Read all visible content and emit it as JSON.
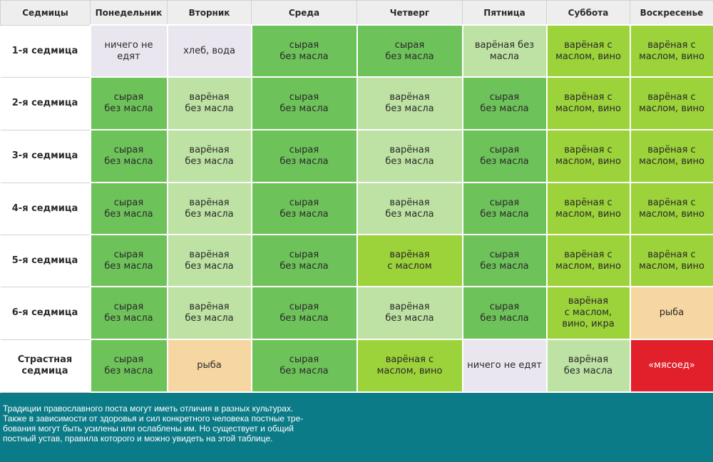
{
  "header": {
    "weeks_label": "Седмицы",
    "days": [
      "Понедельник",
      "Вторник",
      "Среда",
      "Четверг",
      "Пятница",
      "Суббота",
      "Воскресенье"
    ]
  },
  "colors": {
    "lavender": "#e9e6ef",
    "green": "#6ec25a",
    "light_green": "#bde2a3",
    "lime": "#9cd23a",
    "peach": "#f6d6a1",
    "red": "#e1202b",
    "footer_teal": "#0c7b88"
  },
  "rows": [
    {
      "week": "1-я седмица",
      "cells": [
        {
          "text": "ничего не\nедят",
          "color": "lavender"
        },
        {
          "text": "хлеб, вода",
          "color": "lavender"
        },
        {
          "text": "сырая\nбез масла",
          "color": "green"
        },
        {
          "text": "сырая\nбез масла",
          "color": "green"
        },
        {
          "text": "варёная без\nмасла",
          "color": "light_green"
        },
        {
          "text": "варёная с\nмаслом, вино",
          "color": "lime"
        },
        {
          "text": "варёная с\nмаслом, вино",
          "color": "lime"
        }
      ]
    },
    {
      "week": "2-я седмица",
      "cells": [
        {
          "text": "сырая\nбез масла",
          "color": "green"
        },
        {
          "text": "варёная\nбез масла",
          "color": "light_green"
        },
        {
          "text": "сырая\nбез масла",
          "color": "green"
        },
        {
          "text": "варёная\nбез масла",
          "color": "light_green"
        },
        {
          "text": "сырая\nбез масла",
          "color": "green"
        },
        {
          "text": "варёная с\nмаслом, вино",
          "color": "lime"
        },
        {
          "text": "варёная с\nмаслом, вино",
          "color": "lime"
        }
      ]
    },
    {
      "week": "3-я седмица",
      "cells": [
        {
          "text": "сырая\nбез масла",
          "color": "green"
        },
        {
          "text": "варёная\nбез масла",
          "color": "light_green"
        },
        {
          "text": "сырая\nбез масла",
          "color": "green"
        },
        {
          "text": "варёная\nбез масла",
          "color": "light_green"
        },
        {
          "text": "сырая\nбез масла",
          "color": "green"
        },
        {
          "text": "варёная с\nмаслом, вино",
          "color": "lime"
        },
        {
          "text": "варёная с\nмаслом, вино",
          "color": "lime"
        }
      ]
    },
    {
      "week": "4-я седмица",
      "cells": [
        {
          "text": "сырая\nбез масла",
          "color": "green"
        },
        {
          "text": "варёная\nбез масла",
          "color": "light_green"
        },
        {
          "text": "сырая\nбез масла",
          "color": "green"
        },
        {
          "text": "варёная\nбез масла",
          "color": "light_green"
        },
        {
          "text": "сырая\nбез масла",
          "color": "green"
        },
        {
          "text": "варёная с\nмаслом, вино",
          "color": "lime"
        },
        {
          "text": "варёная с\nмаслом, вино",
          "color": "lime"
        }
      ]
    },
    {
      "week": "5-я седмица",
      "cells": [
        {
          "text": "сырая\nбез масла",
          "color": "green"
        },
        {
          "text": "варёная\nбез масла",
          "color": "light_green"
        },
        {
          "text": "сырая\nбез масла",
          "color": "green"
        },
        {
          "text": "варёная\nс маслом",
          "color": "lime"
        },
        {
          "text": "сырая\nбез масла",
          "color": "green"
        },
        {
          "text": "варёная с\nмаслом, вино",
          "color": "lime"
        },
        {
          "text": "варёная с\nмаслом, вино",
          "color": "lime"
        }
      ]
    },
    {
      "week": "6-я седмица",
      "cells": [
        {
          "text": "сырая\nбез масла",
          "color": "green"
        },
        {
          "text": "варёная\nбез масла",
          "color": "light_green"
        },
        {
          "text": "сырая\nбез масла",
          "color": "green"
        },
        {
          "text": "варёная\nбез масла",
          "color": "light_green"
        },
        {
          "text": "сырая\nбез масла",
          "color": "green"
        },
        {
          "text": "варёная\nс маслом,\nвино, икра",
          "color": "lime"
        },
        {
          "text": "рыба",
          "color": "peach"
        }
      ]
    },
    {
      "week": "Страстная\nседмица",
      "cells": [
        {
          "text": "сырая\nбез масла",
          "color": "green"
        },
        {
          "text": "рыба",
          "color": "peach"
        },
        {
          "text": "сырая\nбез масла",
          "color": "green"
        },
        {
          "text": "варёная с\nмаслом, вино",
          "color": "lime"
        },
        {
          "text": "ничего не едят",
          "color": "lavender"
        },
        {
          "text": "варёная\nбез масла",
          "color": "light_green"
        },
        {
          "text": "«мясоед»",
          "color": "red"
        }
      ]
    }
  ],
  "footer": {
    "text": "Традиции православного поста могут иметь отличия в разных культурах.\nТакже в зависимости от здоровья и сил конкретного человека постные тре-\nбования могут быть усилены или ослаблены им. Но существует и общий\nпостный устав, правила которого и можно увидеть на этой таблице."
  }
}
